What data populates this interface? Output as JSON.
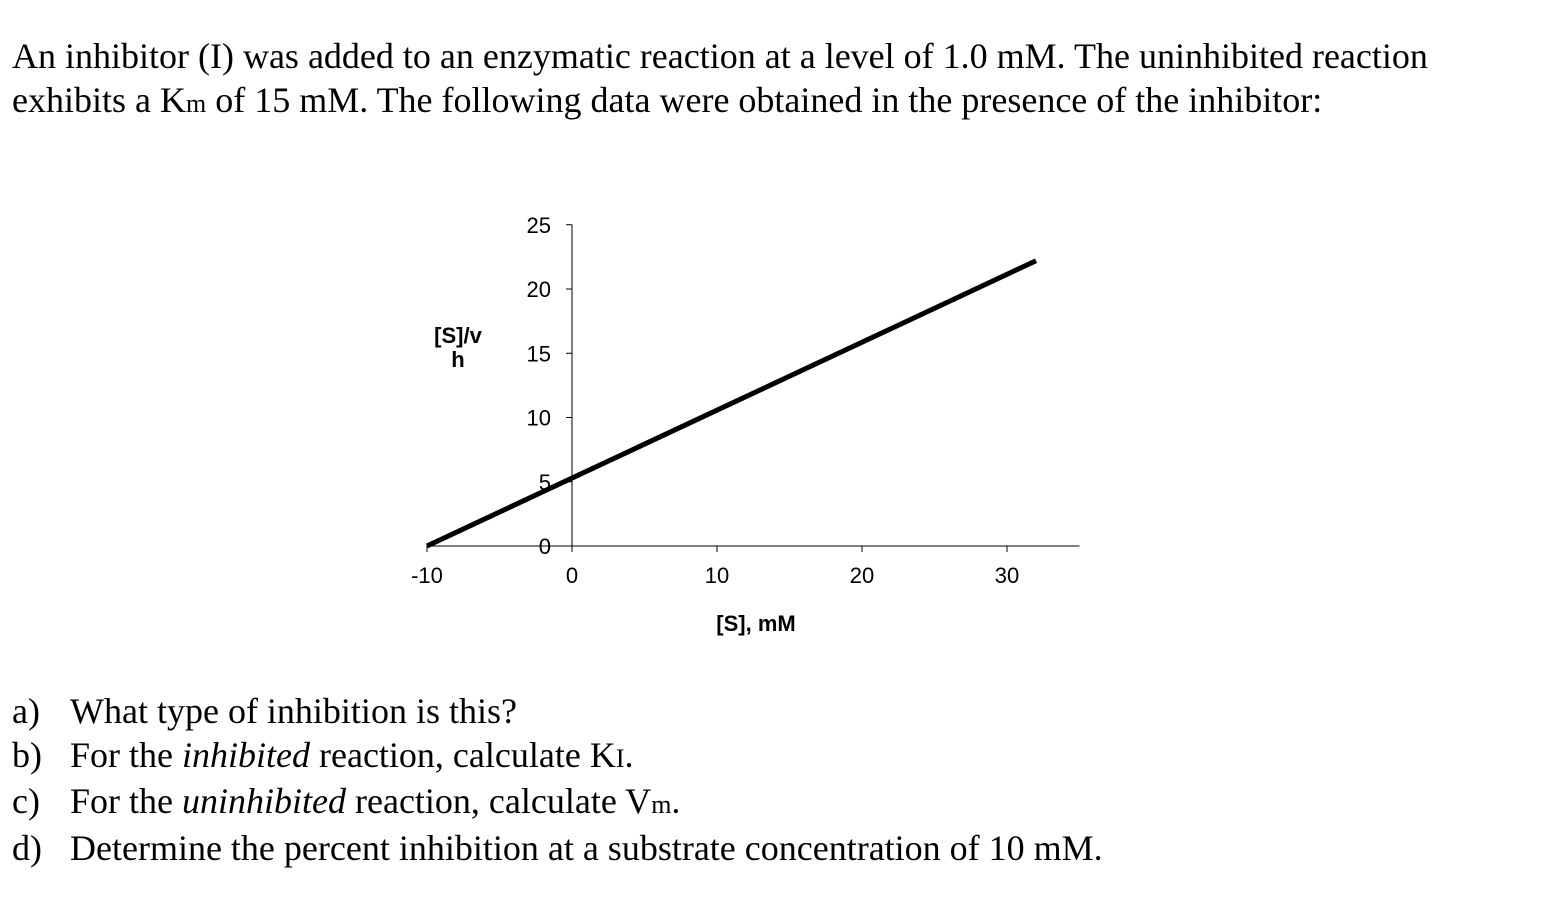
{
  "problem": {
    "intro_part1": "An inhibitor (I) was added to an enzymatic reaction at a level of 1.0 mM.  The uninhibited reaction exhibits a K",
    "intro_sub": "m",
    "intro_part2": " of 15 mM.  The following data were obtained in the presence of the inhibitor:"
  },
  "questions": [
    {
      "letter": "a)",
      "before": "What type of inhibition is this?",
      "italic": "",
      "after": "",
      "sub": "",
      "end": ""
    },
    {
      "letter": "b)",
      "before": "For the ",
      "italic": "inhibited",
      "after": " reaction, calculate K",
      "sub": "I",
      "end": "."
    },
    {
      "letter": "c)",
      "before": "For the ",
      "italic": "uninhibited",
      "after": " reaction, calculate V",
      "sub": "m",
      "end": "."
    },
    {
      "letter": "d)",
      "before": "Determine the percent inhibition at a substrate concentration of 10 mM.",
      "italic": "",
      "after": "",
      "sub": "",
      "end": ""
    }
  ],
  "chart_data": {
    "type": "line",
    "title": "",
    "xlabel": "[S], mM",
    "ylabel_lines": [
      "[S]/v",
      "h"
    ],
    "xlim": [
      -10,
      35
    ],
    "ylim": [
      0,
      25
    ],
    "x_ticks": [
      -10,
      0,
      10,
      20,
      30
    ],
    "y_ticks": [
      0,
      5,
      10,
      15,
      20,
      25
    ],
    "grid": false,
    "legend": "none",
    "series": [
      {
        "x": [
          -10,
          32
        ],
        "y": [
          0,
          22.2
        ],
        "color": "#000000"
      }
    ]
  }
}
